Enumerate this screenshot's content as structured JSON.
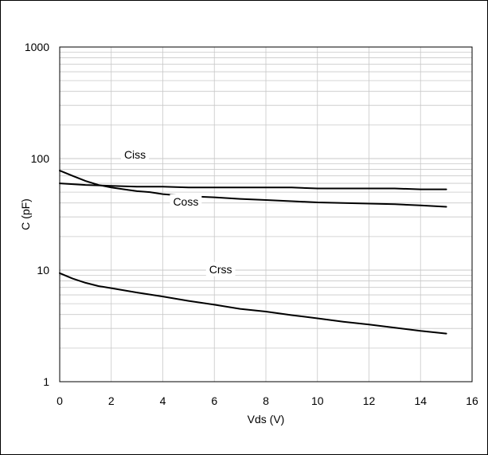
{
  "chart_data": {
    "type": "line",
    "title": "",
    "xlabel": "Vds (V)",
    "ylabel": "C (pF)",
    "xlim": [
      0,
      16
    ],
    "ylim": [
      1,
      1000
    ],
    "yscale": "log",
    "grid": true,
    "legend": "none",
    "x_ticks": [
      "0",
      "2",
      "4",
      "6",
      "8",
      "10",
      "12",
      "14",
      "16"
    ],
    "y_ticks": [
      "1",
      "10",
      "100",
      "1000"
    ],
    "series": [
      {
        "name": "Ciss",
        "x": [
          0,
          1,
          2,
          3,
          4,
          5,
          6,
          7,
          8,
          9,
          10,
          11,
          12,
          13,
          14,
          15
        ],
        "y": [
          60,
          58,
          57,
          56,
          56,
          55,
          55,
          55,
          55,
          55,
          54,
          54,
          54,
          54,
          53,
          53
        ]
      },
      {
        "name": "Coss",
        "x": [
          0,
          0.5,
          1,
          1.5,
          2,
          2.5,
          3,
          3.5,
          4,
          5,
          6,
          7,
          8,
          9,
          10,
          11,
          12,
          13,
          14,
          15
        ],
        "y": [
          78,
          70,
          63,
          58,
          55,
          53,
          51,
          50,
          48,
          46,
          45,
          43.5,
          42.5,
          41.5,
          40.5,
          40,
          39.5,
          39,
          38,
          37
        ]
      },
      {
        "name": "Crss",
        "x": [
          0,
          0.5,
          1,
          1.5,
          2,
          3,
          4,
          5,
          6,
          7,
          8,
          9,
          10,
          11,
          12,
          13,
          14,
          15
        ],
        "y": [
          9.4,
          8.4,
          7.7,
          7.2,
          6.9,
          6.3,
          5.8,
          5.3,
          4.9,
          4.5,
          4.25,
          3.95,
          3.7,
          3.45,
          3.25,
          3.05,
          2.85,
          2.7
        ]
      }
    ],
    "line_color": "#000000",
    "grid_color": "#c8c8c8"
  }
}
